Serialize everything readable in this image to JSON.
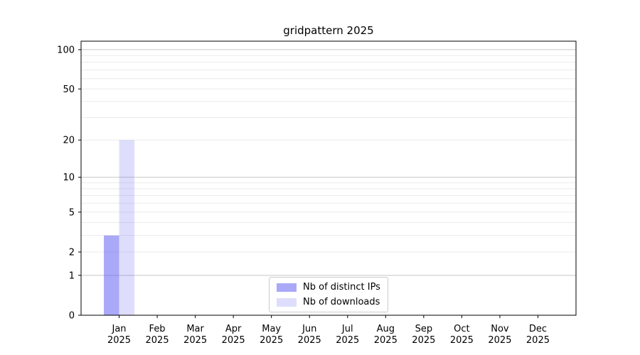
{
  "chart_data": {
    "type": "bar",
    "title": "gridpattern 2025",
    "categories": [
      "Jan",
      "Feb",
      "Mar",
      "Apr",
      "May",
      "Jun",
      "Jul",
      "Aug",
      "Sep",
      "Oct",
      "Nov",
      "Dec"
    ],
    "x_sublabel": "2025",
    "series": [
      {
        "name": "Nb of distinct IPs",
        "color": "rgba(90,90,240,0.52)",
        "values": [
          3,
          0,
          0,
          0,
          0,
          0,
          0,
          0,
          0,
          0,
          0,
          0
        ]
      },
      {
        "name": "Nb of downloads",
        "color": "rgba(90,90,240,0.20)",
        "values": [
          20,
          0,
          0,
          0,
          0,
          0,
          0,
          0,
          0,
          0,
          0,
          0
        ]
      }
    ],
    "y_axis": {
      "scale": "log1p",
      "ylim": [
        0,
        116
      ],
      "tick_values": [
        100,
        50,
        20,
        10,
        5,
        2,
        1,
        0
      ],
      "tick_labels": [
        "100",
        "50",
        "20",
        "10",
        "5",
        "2",
        "1",
        "0"
      ],
      "major_gridlines": [
        1,
        10,
        100
      ],
      "minor_gridlines": [
        2,
        3,
        4,
        5,
        6,
        7,
        8,
        9,
        20,
        30,
        40,
        50,
        60,
        70,
        80,
        90
      ]
    },
    "legend": {
      "position": "lower center"
    },
    "colors": {
      "major_grid": "#c6c6c6",
      "minor_grid": "#ebebeb",
      "spine": "#000000",
      "text": "#000000",
      "background": "#ffffff"
    }
  }
}
